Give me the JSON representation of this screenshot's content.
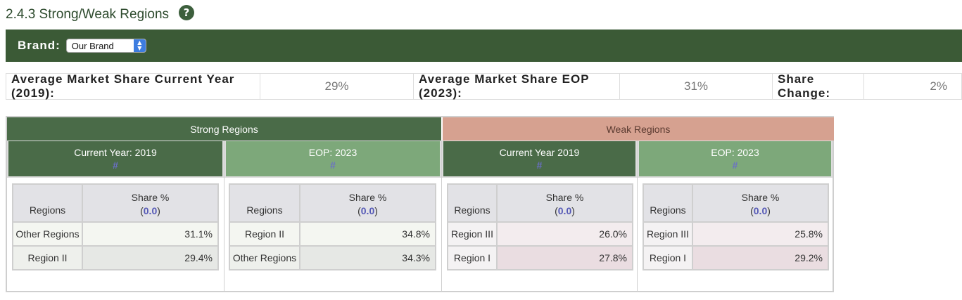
{
  "header": {
    "title": "2.4.3 Strong/Weak Regions",
    "help_icon": "?"
  },
  "brand": {
    "label": "Brand:",
    "selected": "Our Brand"
  },
  "summary": {
    "current_label": "Average Market Share Current Year (2019):",
    "current_value": "29%",
    "eop_label": "Average Market Share EOP (2023):",
    "eop_value": "31%",
    "change_label": "Share Change:",
    "change_value": "2%"
  },
  "strong": {
    "title": "Strong Regions",
    "current": {
      "header": "Current Year: 2019",
      "hash": "#",
      "col_regions": "Regions",
      "col_share": "Share %",
      "share_fmt": "0.0",
      "rows": [
        {
          "region": "Other Regions",
          "share": "31.1%"
        },
        {
          "region": "Region II",
          "share": "29.4%"
        }
      ]
    },
    "eop": {
      "header": "EOP: 2023",
      "hash": "#",
      "col_regions": "Regions",
      "col_share": "Share %",
      "share_fmt": "0.0",
      "rows": [
        {
          "region": "Region II",
          "share": "34.8%"
        },
        {
          "region": "Other Regions",
          "share": "34.3%"
        }
      ]
    }
  },
  "weak": {
    "title": "Weak Regions",
    "current": {
      "header": "Current Year 2019",
      "hash": "#",
      "col_regions": "Regions",
      "col_share": "Share %",
      "share_fmt": "0.0",
      "rows": [
        {
          "region": "Region III",
          "share": "26.0%"
        },
        {
          "region": "Region I",
          "share": "27.8%"
        }
      ]
    },
    "eop": {
      "header": "EOP: 2023",
      "hash": "#",
      "col_regions": "Regions",
      "col_share": "Share %",
      "share_fmt": "0.0",
      "rows": [
        {
          "region": "Region III",
          "share": "25.8%"
        },
        {
          "region": "Region I",
          "share": "29.2%"
        }
      ]
    }
  }
}
